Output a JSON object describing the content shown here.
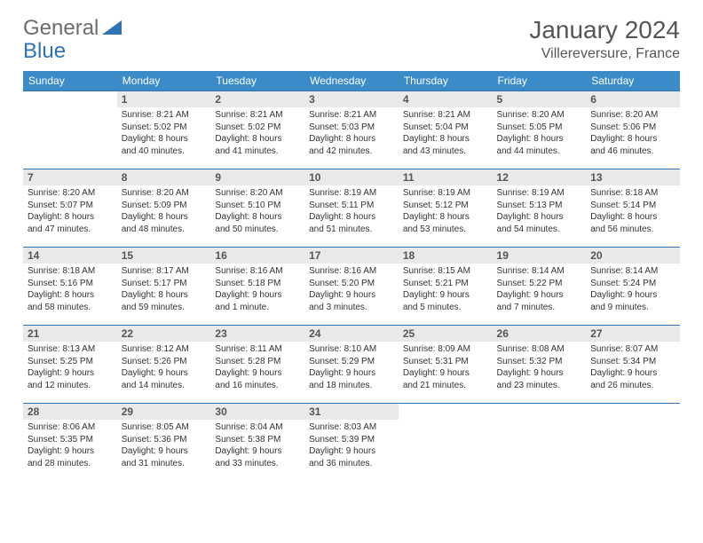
{
  "logo": {
    "part1": "General",
    "part2": "Blue",
    "brand_gray": "#6d6d6d",
    "brand_blue": "#2f73b5"
  },
  "title": "January 2024",
  "location": "Villereversure, France",
  "colors": {
    "header_bg": "#3b8bc9",
    "header_fg": "#ffffff",
    "row_border": "#2f73b5",
    "daynum_bg": "#e9e9e9",
    "text": "#333333",
    "page_bg": "#ffffff"
  },
  "weekdays": [
    "Sunday",
    "Monday",
    "Tuesday",
    "Wednesday",
    "Thursday",
    "Friday",
    "Saturday"
  ],
  "weeks": [
    [
      null,
      {
        "n": "1",
        "sr": "Sunrise: 8:21 AM",
        "ss": "Sunset: 5:02 PM",
        "d1": "Daylight: 8 hours",
        "d2": "and 40 minutes."
      },
      {
        "n": "2",
        "sr": "Sunrise: 8:21 AM",
        "ss": "Sunset: 5:02 PM",
        "d1": "Daylight: 8 hours",
        "d2": "and 41 minutes."
      },
      {
        "n": "3",
        "sr": "Sunrise: 8:21 AM",
        "ss": "Sunset: 5:03 PM",
        "d1": "Daylight: 8 hours",
        "d2": "and 42 minutes."
      },
      {
        "n": "4",
        "sr": "Sunrise: 8:21 AM",
        "ss": "Sunset: 5:04 PM",
        "d1": "Daylight: 8 hours",
        "d2": "and 43 minutes."
      },
      {
        "n": "5",
        "sr": "Sunrise: 8:20 AM",
        "ss": "Sunset: 5:05 PM",
        "d1": "Daylight: 8 hours",
        "d2": "and 44 minutes."
      },
      {
        "n": "6",
        "sr": "Sunrise: 8:20 AM",
        "ss": "Sunset: 5:06 PM",
        "d1": "Daylight: 8 hours",
        "d2": "and 46 minutes."
      }
    ],
    [
      {
        "n": "7",
        "sr": "Sunrise: 8:20 AM",
        "ss": "Sunset: 5:07 PM",
        "d1": "Daylight: 8 hours",
        "d2": "and 47 minutes."
      },
      {
        "n": "8",
        "sr": "Sunrise: 8:20 AM",
        "ss": "Sunset: 5:09 PM",
        "d1": "Daylight: 8 hours",
        "d2": "and 48 minutes."
      },
      {
        "n": "9",
        "sr": "Sunrise: 8:20 AM",
        "ss": "Sunset: 5:10 PM",
        "d1": "Daylight: 8 hours",
        "d2": "and 50 minutes."
      },
      {
        "n": "10",
        "sr": "Sunrise: 8:19 AM",
        "ss": "Sunset: 5:11 PM",
        "d1": "Daylight: 8 hours",
        "d2": "and 51 minutes."
      },
      {
        "n": "11",
        "sr": "Sunrise: 8:19 AM",
        "ss": "Sunset: 5:12 PM",
        "d1": "Daylight: 8 hours",
        "d2": "and 53 minutes."
      },
      {
        "n": "12",
        "sr": "Sunrise: 8:19 AM",
        "ss": "Sunset: 5:13 PM",
        "d1": "Daylight: 8 hours",
        "d2": "and 54 minutes."
      },
      {
        "n": "13",
        "sr": "Sunrise: 8:18 AM",
        "ss": "Sunset: 5:14 PM",
        "d1": "Daylight: 8 hours",
        "d2": "and 56 minutes."
      }
    ],
    [
      {
        "n": "14",
        "sr": "Sunrise: 8:18 AM",
        "ss": "Sunset: 5:16 PM",
        "d1": "Daylight: 8 hours",
        "d2": "and 58 minutes."
      },
      {
        "n": "15",
        "sr": "Sunrise: 8:17 AM",
        "ss": "Sunset: 5:17 PM",
        "d1": "Daylight: 8 hours",
        "d2": "and 59 minutes."
      },
      {
        "n": "16",
        "sr": "Sunrise: 8:16 AM",
        "ss": "Sunset: 5:18 PM",
        "d1": "Daylight: 9 hours",
        "d2": "and 1 minute."
      },
      {
        "n": "17",
        "sr": "Sunrise: 8:16 AM",
        "ss": "Sunset: 5:20 PM",
        "d1": "Daylight: 9 hours",
        "d2": "and 3 minutes."
      },
      {
        "n": "18",
        "sr": "Sunrise: 8:15 AM",
        "ss": "Sunset: 5:21 PM",
        "d1": "Daylight: 9 hours",
        "d2": "and 5 minutes."
      },
      {
        "n": "19",
        "sr": "Sunrise: 8:14 AM",
        "ss": "Sunset: 5:22 PM",
        "d1": "Daylight: 9 hours",
        "d2": "and 7 minutes."
      },
      {
        "n": "20",
        "sr": "Sunrise: 8:14 AM",
        "ss": "Sunset: 5:24 PM",
        "d1": "Daylight: 9 hours",
        "d2": "and 9 minutes."
      }
    ],
    [
      {
        "n": "21",
        "sr": "Sunrise: 8:13 AM",
        "ss": "Sunset: 5:25 PM",
        "d1": "Daylight: 9 hours",
        "d2": "and 12 minutes."
      },
      {
        "n": "22",
        "sr": "Sunrise: 8:12 AM",
        "ss": "Sunset: 5:26 PM",
        "d1": "Daylight: 9 hours",
        "d2": "and 14 minutes."
      },
      {
        "n": "23",
        "sr": "Sunrise: 8:11 AM",
        "ss": "Sunset: 5:28 PM",
        "d1": "Daylight: 9 hours",
        "d2": "and 16 minutes."
      },
      {
        "n": "24",
        "sr": "Sunrise: 8:10 AM",
        "ss": "Sunset: 5:29 PM",
        "d1": "Daylight: 9 hours",
        "d2": "and 18 minutes."
      },
      {
        "n": "25",
        "sr": "Sunrise: 8:09 AM",
        "ss": "Sunset: 5:31 PM",
        "d1": "Daylight: 9 hours",
        "d2": "and 21 minutes."
      },
      {
        "n": "26",
        "sr": "Sunrise: 8:08 AM",
        "ss": "Sunset: 5:32 PM",
        "d1": "Daylight: 9 hours",
        "d2": "and 23 minutes."
      },
      {
        "n": "27",
        "sr": "Sunrise: 8:07 AM",
        "ss": "Sunset: 5:34 PM",
        "d1": "Daylight: 9 hours",
        "d2": "and 26 minutes."
      }
    ],
    [
      {
        "n": "28",
        "sr": "Sunrise: 8:06 AM",
        "ss": "Sunset: 5:35 PM",
        "d1": "Daylight: 9 hours",
        "d2": "and 28 minutes."
      },
      {
        "n": "29",
        "sr": "Sunrise: 8:05 AM",
        "ss": "Sunset: 5:36 PM",
        "d1": "Daylight: 9 hours",
        "d2": "and 31 minutes."
      },
      {
        "n": "30",
        "sr": "Sunrise: 8:04 AM",
        "ss": "Sunset: 5:38 PM",
        "d1": "Daylight: 9 hours",
        "d2": "and 33 minutes."
      },
      {
        "n": "31",
        "sr": "Sunrise: 8:03 AM",
        "ss": "Sunset: 5:39 PM",
        "d1": "Daylight: 9 hours",
        "d2": "and 36 minutes."
      },
      null,
      null,
      null
    ]
  ]
}
